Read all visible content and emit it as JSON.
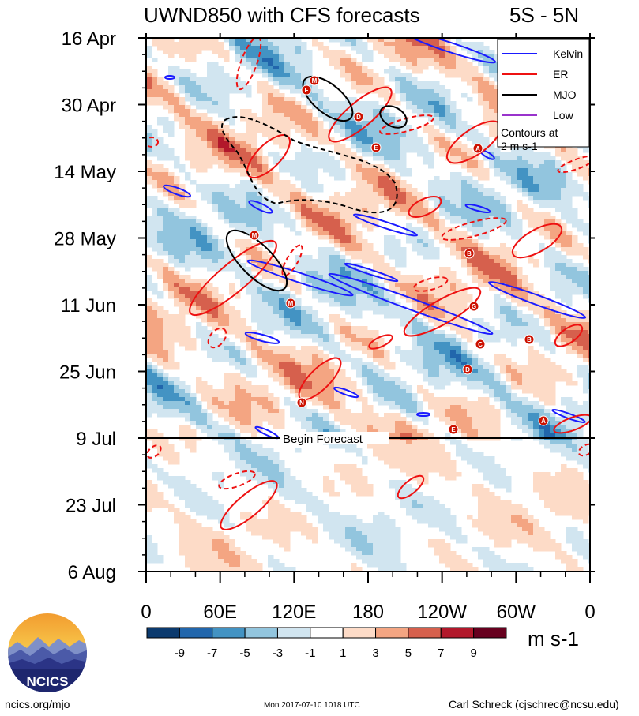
{
  "chart_data": {
    "type": "heatmap",
    "title": "UWND850 with CFS forecasts",
    "region": "5S - 5N",
    "y_axis": {
      "ticks": [
        "16 Apr",
        "30 Apr",
        "14 May",
        "28 May",
        "11 Jun",
        "25 Jun",
        "9 Jul",
        "23 Jul",
        "6 Aug"
      ]
    },
    "x_axis": {
      "ticks": [
        "0",
        "60E",
        "120E",
        "180",
        "120W",
        "60W",
        "0"
      ]
    },
    "forecast_marker": {
      "date": "9 Jul",
      "label": "Begin Forecast"
    },
    "legend": {
      "placement": "top-right",
      "entries": [
        {
          "name": "Kelvin",
          "color": "#1a1aff"
        },
        {
          "name": "ER",
          "color": "#ee1111"
        },
        {
          "name": "MJO",
          "color": "#000000"
        },
        {
          "name": "Low",
          "color": "#9933cc"
        }
      ],
      "note_line1": "Contours at",
      "note_line2": "2 m s-1"
    },
    "colorbar": {
      "levels": [
        "-9",
        "-7",
        "-5",
        "-3",
        "-1",
        "1",
        "3",
        "5",
        "7",
        "9"
      ],
      "colors": [
        "#0b3a6e",
        "#2166ac",
        "#4393c3",
        "#92c5de",
        "#d1e5f0",
        "#ffffff",
        "#fddbc7",
        "#f4a582",
        "#d6604d",
        "#b2182b",
        "#67001f"
      ],
      "unit": "m s-1"
    },
    "storm_labels": [
      "M",
      "F",
      "D",
      "E",
      "A",
      "M",
      "B",
      "M",
      "G",
      "C",
      "D",
      "N",
      "E",
      "A",
      "B"
    ]
  },
  "footer": {
    "site": "ncics.org/mjo",
    "timestamp": "Mon 2017-07-10 1018 UTC",
    "author": "Carl Schreck (cjschrec@ncsu.edu)",
    "logo_text": "NCICS"
  }
}
